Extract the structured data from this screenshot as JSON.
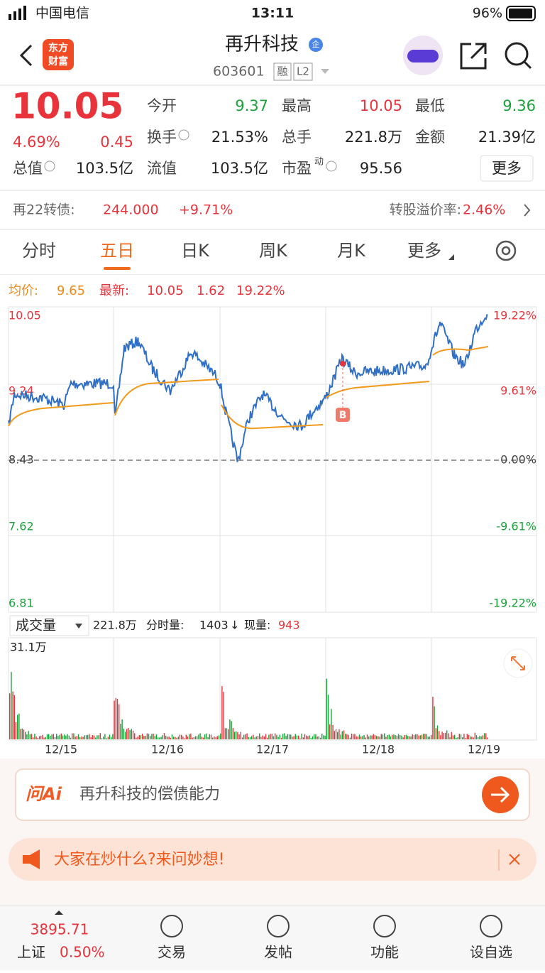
{
  "status": {
    "carrier": "中国电信",
    "time": "13:11",
    "battery": "96%"
  },
  "header": {
    "logo": [
      "东方",
      "财富"
    ],
    "title": "再升科技",
    "code": "603601",
    "badges": [
      "融",
      "L2"
    ]
  },
  "quote": {
    "price": "10.05",
    "pct": "4.69%",
    "change": "0.45",
    "fields": [
      {
        "label": "今开",
        "value": "9.37"
      },
      {
        "label": "最高",
        "value": "10.05"
      },
      {
        "label": "最低",
        "value": "9.36"
      },
      {
        "label": "换手",
        "value": "21.53%"
      },
      {
        "label": "总手",
        "value": "221.8万"
      },
      {
        "label": "金额",
        "value": "21.39亿"
      },
      {
        "label": "总值",
        "value": "103.5亿"
      },
      {
        "label": "流值",
        "value": "103.5亿"
      },
      {
        "label": "市盈",
        "value": "95.56",
        "sup": "动"
      }
    ],
    "more": "更多"
  },
  "bond": {
    "label": "再22转债:",
    "price": "244.000",
    "pct": "+9.71%",
    "premium_label": "转股溢价率:",
    "premium": "2.46%"
  },
  "tabs": [
    "分时",
    "五日",
    "日K",
    "周K",
    "月K",
    "更多"
  ],
  "chart": {
    "avg_label": "均价:",
    "avg": "9.65",
    "last_label": "最新:",
    "last": "10.05",
    "change": "1.62",
    "pct": "19.22%",
    "left_axis": [
      "10.05",
      "9.24",
      "8.43",
      "7.62",
      "6.81"
    ],
    "right_axis": [
      "19.22%",
      "9.61%",
      "0.00%",
      "-9.61%",
      "-19.22%"
    ],
    "marker": "B",
    "volume": {
      "label": "成交量",
      "total": "221.8万",
      "tick_label": "分时量:",
      "tick": "1403",
      "arrow": "↓",
      "now_label": "现量:",
      "now": "943",
      "max": "31.1万"
    },
    "dates": [
      "12/15",
      "12/16",
      "12/17",
      "12/18",
      "12/19"
    ]
  },
  "ai": {
    "brand": "问Ai",
    "prompt": "再升科技的偿债能力"
  },
  "banner": "大家在炒什么?来问妙想!",
  "nav": {
    "index": "3895.71",
    "index_name": "上证",
    "index_pct": "0.50%",
    "items": [
      "交易",
      "发帖",
      "功能",
      "设自选"
    ]
  }
}
